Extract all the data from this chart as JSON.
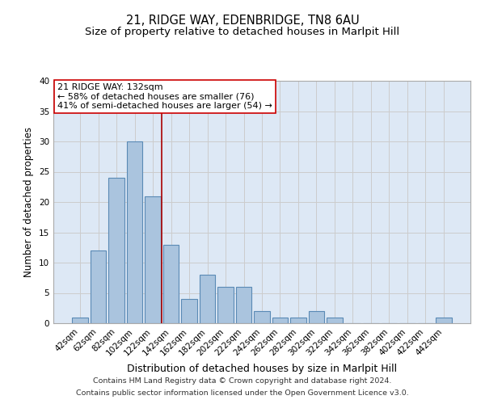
{
  "title": "21, RIDGE WAY, EDENBRIDGE, TN8 6AU",
  "subtitle": "Size of property relative to detached houses in Marlpit Hill",
  "xlabel": "Distribution of detached houses by size in Marlpit Hill",
  "ylabel": "Number of detached properties",
  "footnote1": "Contains HM Land Registry data © Crown copyright and database right 2024.",
  "footnote2": "Contains public sector information licensed under the Open Government Licence v3.0.",
  "categories": [
    "42sqm",
    "62sqm",
    "82sqm",
    "102sqm",
    "122sqm",
    "142sqm",
    "162sqm",
    "182sqm",
    "202sqm",
    "222sqm",
    "242sqm",
    "262sqm",
    "282sqm",
    "302sqm",
    "322sqm",
    "342sqm",
    "362sqm",
    "382sqm",
    "402sqm",
    "422sqm",
    "442sqm"
  ],
  "values": [
    1,
    12,
    24,
    30,
    21,
    13,
    4,
    8,
    6,
    6,
    2,
    1,
    1,
    2,
    1,
    0,
    0,
    0,
    0,
    0,
    1
  ],
  "bar_color": "#aac4de",
  "bar_edgecolor": "#5a8ab5",
  "bar_linewidth": 0.8,
  "grid_color": "#cccccc",
  "bg_color": "#dde8f5",
  "annotation_box_text": "21 RIDGE WAY: 132sqm\n← 58% of detached houses are smaller (76)\n41% of semi-detached houses are larger (54) →",
  "vline_color": "#aa0000",
  "ylim": [
    0,
    40
  ],
  "yticks": [
    0,
    5,
    10,
    15,
    20,
    25,
    30,
    35,
    40
  ],
  "title_fontsize": 10.5,
  "subtitle_fontsize": 9.5,
  "xlabel_fontsize": 9,
  "ylabel_fontsize": 8.5,
  "tick_fontsize": 7.5,
  "annot_fontsize": 8,
  "footnote_fontsize": 6.8
}
